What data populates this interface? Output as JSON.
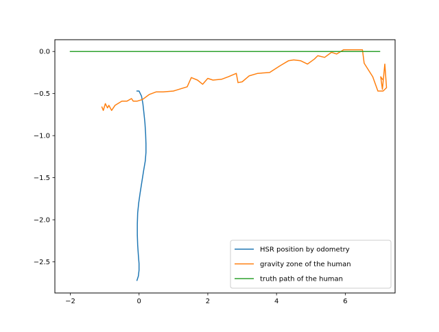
{
  "chart_data": {
    "type": "line",
    "title": "",
    "xlabel": "",
    "ylabel": "",
    "xlim": [
      -2.45,
      7.45
    ],
    "ylim": [
      -2.87,
      0.14
    ],
    "x_ticks": [
      -2,
      0,
      2,
      4,
      6
    ],
    "x_tick_labels": [
      "−2",
      "0",
      "2",
      "4",
      "6"
    ],
    "y_ticks": [
      0.0,
      -0.5,
      -1.0,
      -1.5,
      -2.0,
      -2.5
    ],
    "y_tick_labels": [
      "0.0",
      "−0.5",
      "−1.0",
      "−1.5",
      "−2.0",
      "−2.5"
    ],
    "grid": false,
    "legend_position": "lower-right",
    "series": [
      {
        "name": "HSR position by odometry",
        "color": "#1f77b4",
        "points": [
          [
            -0.06,
            -0.47
          ],
          [
            0.0,
            -0.47
          ],
          [
            0.07,
            -0.53
          ],
          [
            0.11,
            -0.62
          ],
          [
            0.14,
            -0.73
          ],
          [
            0.17,
            -0.85
          ],
          [
            0.19,
            -0.98
          ],
          [
            0.2,
            -1.1
          ],
          [
            0.2,
            -1.2
          ],
          [
            0.18,
            -1.3
          ],
          [
            0.13,
            -1.42
          ],
          [
            0.08,
            -1.55
          ],
          [
            0.03,
            -1.68
          ],
          [
            -0.01,
            -1.8
          ],
          [
            -0.04,
            -1.92
          ],
          [
            -0.05,
            -2.05
          ],
          [
            -0.05,
            -2.18
          ],
          [
            -0.04,
            -2.3
          ],
          [
            -0.02,
            -2.42
          ],
          [
            0.0,
            -2.52
          ],
          [
            0.0,
            -2.6
          ],
          [
            -0.02,
            -2.67
          ],
          [
            -0.06,
            -2.72
          ]
        ]
      },
      {
        "name": "gravity zone of the human",
        "color": "#ff7f0e",
        "points": [
          [
            -1.08,
            -0.66
          ],
          [
            -1.04,
            -0.7
          ],
          [
            -0.98,
            -0.62
          ],
          [
            -0.92,
            -0.67
          ],
          [
            -0.88,
            -0.64
          ],
          [
            -0.8,
            -0.7
          ],
          [
            -0.7,
            -0.64
          ],
          [
            -0.5,
            -0.59
          ],
          [
            -0.35,
            -0.59
          ],
          [
            -0.22,
            -0.56
          ],
          [
            -0.17,
            -0.59
          ],
          [
            -0.05,
            -0.59
          ],
          [
            0.1,
            -0.57
          ],
          [
            0.3,
            -0.51
          ],
          [
            0.5,
            -0.48
          ],
          [
            0.7,
            -0.48
          ],
          [
            1.0,
            -0.47
          ],
          [
            1.4,
            -0.42
          ],
          [
            1.52,
            -0.31
          ],
          [
            1.7,
            -0.34
          ],
          [
            1.85,
            -0.39
          ],
          [
            2.0,
            -0.32
          ],
          [
            2.15,
            -0.34
          ],
          [
            2.4,
            -0.33
          ],
          [
            2.6,
            -0.3
          ],
          [
            2.83,
            -0.26
          ],
          [
            2.88,
            -0.37
          ],
          [
            3.0,
            -0.36
          ],
          [
            3.2,
            -0.29
          ],
          [
            3.45,
            -0.26
          ],
          [
            3.8,
            -0.25
          ],
          [
            4.1,
            -0.17
          ],
          [
            4.35,
            -0.11
          ],
          [
            4.5,
            -0.1
          ],
          [
            4.7,
            -0.11
          ],
          [
            4.9,
            -0.15
          ],
          [
            5.1,
            -0.09
          ],
          [
            5.2,
            -0.05
          ],
          [
            5.4,
            -0.07
          ],
          [
            5.6,
            -0.01
          ],
          [
            5.75,
            -0.03
          ],
          [
            5.95,
            0.02
          ],
          [
            6.1,
            0.02
          ],
          [
            6.5,
            0.02
          ],
          [
            6.55,
            -0.14
          ],
          [
            6.8,
            -0.3
          ],
          [
            6.95,
            -0.47
          ],
          [
            7.1,
            -0.47
          ],
          [
            7.2,
            -0.43
          ],
          [
            7.15,
            -0.15
          ],
          [
            7.08,
            -0.45
          ],
          [
            7.03,
            -0.3
          ],
          [
            7.08,
            -0.33
          ]
        ]
      },
      {
        "name": "truth path of the human",
        "color": "#2ca02c",
        "points": [
          [
            -2.0,
            0.0
          ],
          [
            7.0,
            0.0
          ]
        ]
      }
    ]
  }
}
